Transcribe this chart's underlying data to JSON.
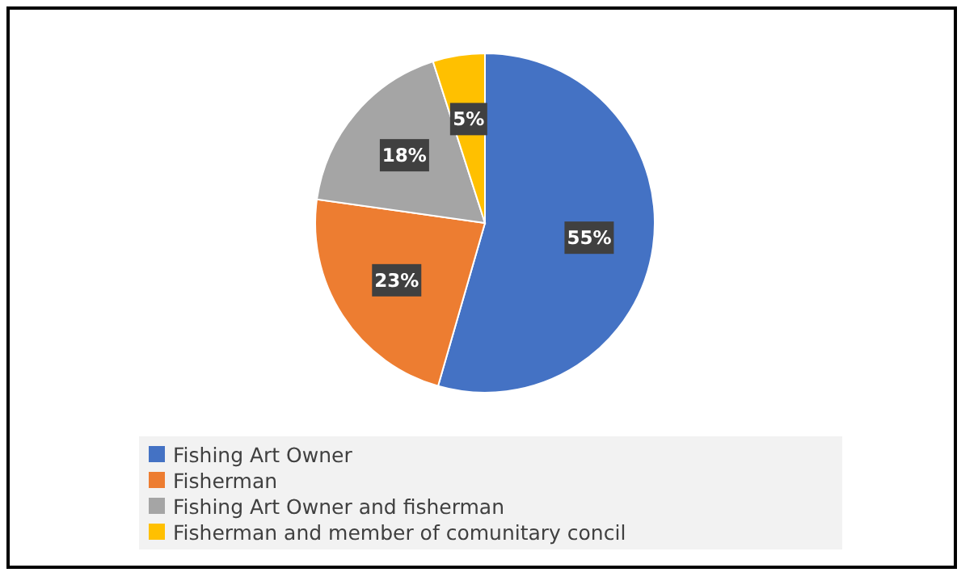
{
  "chart_data": {
    "type": "pie",
    "categories": [
      "Fishing Art Owner",
      "Fisherman",
      "Fishing Art Owner and fisherman",
      "Fisherman and member of comunitary concil"
    ],
    "values": [
      55,
      23,
      18,
      5
    ],
    "colors": [
      "#4472c4",
      "#ed7d31",
      "#a5a5a5",
      "#ffc000"
    ],
    "value_labels": [
      "55%",
      "23%",
      "18%",
      "5%"
    ],
    "legend": "bottom"
  }
}
